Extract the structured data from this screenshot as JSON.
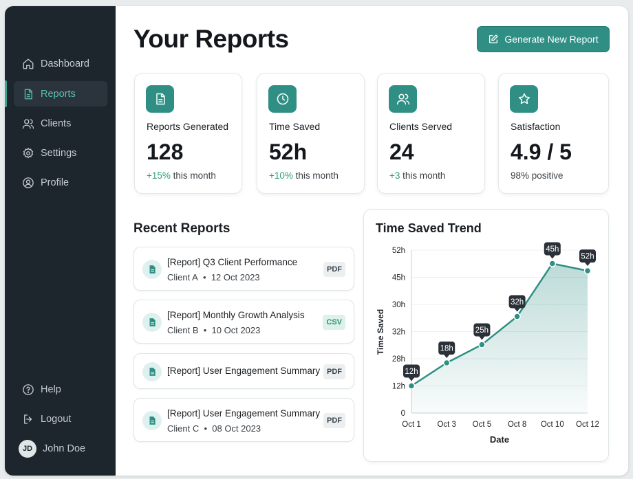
{
  "sidebar": {
    "items": [
      {
        "label": "Dashboard",
        "icon": "home-icon"
      },
      {
        "label": "Reports",
        "icon": "document-icon"
      },
      {
        "label": "Clients",
        "icon": "users-icon"
      },
      {
        "label": "Settings",
        "icon": "gear-icon"
      },
      {
        "label": "Profile",
        "icon": "user-circle-icon"
      }
    ],
    "bottom": [
      {
        "label": "Help",
        "icon": "help-icon"
      },
      {
        "label": "Logout",
        "icon": "logout-icon"
      }
    ],
    "user": {
      "initials": "JD",
      "name": "John Doe"
    }
  },
  "header": {
    "title": "Your Reports",
    "generate_label": "Generate New Report"
  },
  "stats": [
    {
      "label": "Reports Generated",
      "value": "128",
      "change": "+15%",
      "suffix": " this month",
      "icon": "document-icon"
    },
    {
      "label": "Time Saved",
      "value": "52h",
      "change": "+10%",
      "suffix": " this month",
      "icon": "clock-icon"
    },
    {
      "label": "Clients Served",
      "value": "24",
      "change": "+3",
      "suffix": " this month",
      "icon": "users-icon"
    },
    {
      "label": "Satisfaction",
      "value": "4.9 / 5",
      "change": "",
      "suffix": "98% positive",
      "icon": "star-icon"
    }
  ],
  "recent": {
    "title": "Recent Reports",
    "items": [
      {
        "title": "[Report] Q3 Client Performance",
        "client": "Client A",
        "date": "12 Oct 2023",
        "type": "PDF"
      },
      {
        "title": "[Report] Monthly Growth Analysis",
        "client": "Client B",
        "date": "10 Oct 2023",
        "type": "CSV"
      },
      {
        "title": "[Report] User Engagement Summary",
        "client": "",
        "date": "",
        "type": "PDF"
      },
      {
        "title": "[Report] User Engagement Summary",
        "client": "Client C",
        "date": "08 Oct 2023",
        "type": "PDF"
      }
    ]
  },
  "colors": {
    "accent": "#2f8f85",
    "sidebar_bg": "#1d252d",
    "active_text": "#54c1ae",
    "positive": "#2f9a7e"
  },
  "chart_data": {
    "type": "area",
    "title": "Time Saved Trend",
    "xlabel": "Date",
    "ylabel": "Time Saved",
    "x": [
      "Oct 1",
      "Oct 3",
      "Oct 5",
      "Oct 8",
      "Oct 10",
      "Oct 12"
    ],
    "y_tick_labels": [
      "0",
      "12h",
      "28h",
      "32h",
      "30h",
      "45h",
      "52h"
    ],
    "values": [
      12,
      18,
      25,
      32,
      45,
      52
    ],
    "data_labels": [
      "12h",
      "18h",
      "25h",
      "32h",
      "45h",
      "52h"
    ],
    "grid": true
  }
}
